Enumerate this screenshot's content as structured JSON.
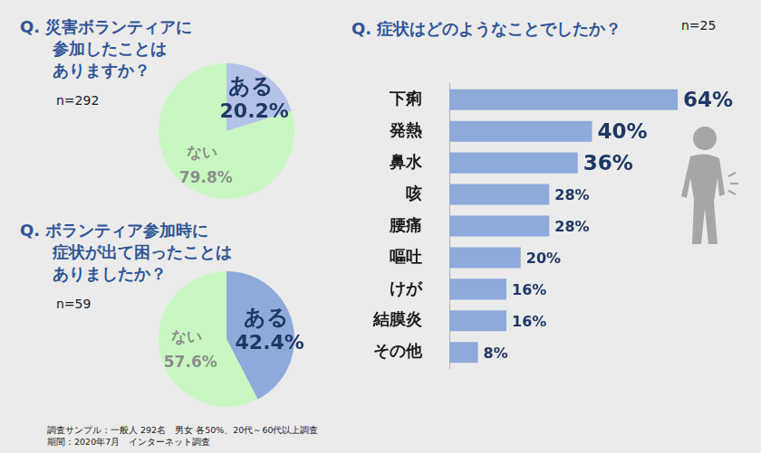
{
  "footnote": [
    "調査サンプル：一般人 292名　男女 各50%、20代～60代以上調査",
    "期間：2020年7月　インターネット調査"
  ],
  "chart_data": [
    {
      "type": "pie",
      "title": [
        "Q. 災害ボランティアに",
        "参加したことは",
        "ありますか？"
      ],
      "subtitle": "n=292",
      "categories": [
        "ある",
        "ない"
      ],
      "values": [
        20.2,
        79.8
      ],
      "value_labels": [
        "20.2%",
        "79.8%"
      ],
      "colors": [
        "#b4c2ea",
        "#c8f7c2"
      ],
      "data_labels": true
    },
    {
      "type": "pie",
      "title": [
        "Q. ボランティア参加時に",
        "症状が出て困ったことは",
        "ありましたか？"
      ],
      "subtitle": "n=59",
      "categories": [
        "ある",
        "ない"
      ],
      "values": [
        42.4,
        57.6
      ],
      "value_labels": [
        "42.4%",
        "57.6%"
      ],
      "colors": [
        "#8eaadb",
        "#c8f7c2"
      ],
      "data_labels": true
    },
    {
      "type": "bar",
      "title": "Q. 症状はどのようなことでしたか？",
      "subtitle": "n=25",
      "orientation": "horizontal",
      "categories": [
        "下痢",
        "発熱",
        "鼻水",
        "咳",
        "腰痛",
        "嘔吐",
        "けが",
        "結膜炎",
        "その他"
      ],
      "values": [
        64,
        40,
        36,
        28,
        28,
        20,
        16,
        16,
        8
      ],
      "value_labels": [
        "64%",
        "40%",
        "36%",
        "28%",
        "28%",
        "20%",
        "16%",
        "16%",
        "8%"
      ],
      "color": "#8eaadb",
      "xlim": [
        0,
        64
      ],
      "data_labels": true,
      "tick_labels": "y",
      "grid": false
    }
  ]
}
